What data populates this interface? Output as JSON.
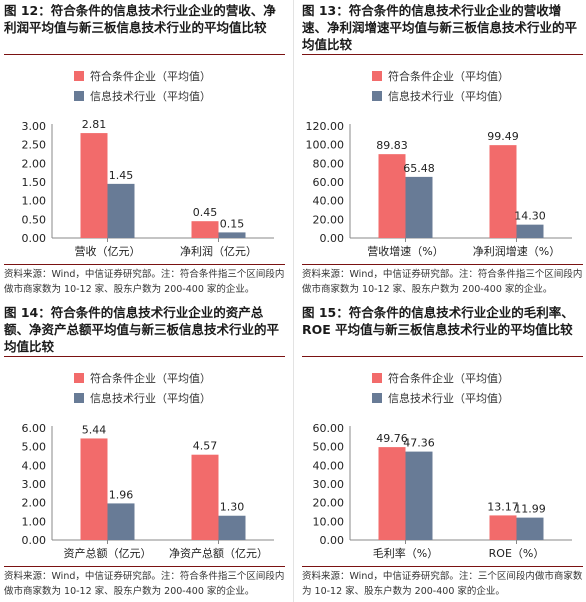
{
  "colors": {
    "series_a": "#f26b6b",
    "series_b": "#687b96",
    "rule": "#7a1212"
  },
  "chart_data": [
    {
      "type": "bar",
      "title": "图 12：符合条件的信息技术行业企业的营收、净利润平均值与新三板信息技术行业的平均值比较",
      "categories": [
        "营收（亿元）",
        "净利润（亿元）"
      ],
      "series": [
        {
          "name": "符合条件企业（平均值）",
          "values": [
            2.81,
            0.45
          ]
        },
        {
          "name": "信息技术行业（平均值）",
          "values": [
            1.45,
            0.15
          ]
        }
      ],
      "value_labels": [
        [
          "2.81",
          "0.45"
        ],
        [
          "1.45",
          "0.15"
        ]
      ],
      "ylim": [
        0,
        3.0
      ],
      "yticks": [
        "0.00",
        "0.50",
        "1.00",
        "1.50",
        "2.00",
        "2.50",
        "3.00"
      ],
      "legend": "top-left",
      "note": "资料来源：Wind，中信证券研究部。注：符合条件指三个区间段内做市商家数为 10-12 家、股东户数为 200-400 家的企业。"
    },
    {
      "type": "bar",
      "title": "图 13：符合条件的信息技术行业企业的营收增速、净利润增速平均值与新三板信息技术行业的平均值比较",
      "categories": [
        "营收增速（%）",
        "净利润增速（%）"
      ],
      "series": [
        {
          "name": "符合条件企业（平均值）",
          "values": [
            89.83,
            99.49
          ]
        },
        {
          "name": "信息技术行业（平均值）",
          "values": [
            65.48,
            14.3
          ]
        }
      ],
      "value_labels": [
        [
          "89.83",
          "99.49"
        ],
        [
          "65.48",
          "14.30"
        ]
      ],
      "ylim": [
        0,
        120
      ],
      "yticks": [
        "0.00",
        "20.00",
        "40.00",
        "60.00",
        "80.00",
        "100.00",
        "120.00"
      ],
      "legend": "top-left",
      "note": "资料来源：Wind，中信证券研究部。注：符合条件指三个区间段内做市商家数为 10-12 家、股东户数为 200-400 家的企业。"
    },
    {
      "type": "bar",
      "title": "图 14：符合条件的信息技术行业企业的资产总额、净资产总额平均值与新三板信息技术行业的平均值比较",
      "categories": [
        "资产总额（亿元）",
        "净资产总额（亿元）"
      ],
      "series": [
        {
          "name": "符合条件企业（平均值）",
          "values": [
            5.44,
            4.57
          ]
        },
        {
          "name": "信息技术行业（平均值）",
          "values": [
            1.96,
            1.3
          ]
        }
      ],
      "value_labels": [
        [
          "5.44",
          "4.57"
        ],
        [
          "1.96",
          "1.30"
        ]
      ],
      "ylim": [
        0,
        6.0
      ],
      "yticks": [
        "0.00",
        "1.00",
        "2.00",
        "3.00",
        "4.00",
        "5.00",
        "6.00"
      ],
      "legend": "top-left",
      "note": "资料来源：Wind，中信证券研究部。注：符合条件指三个区间段内做市商家数为 10-12 家、股东户数为 200-400 家的企业。"
    },
    {
      "type": "bar",
      "title": "图 15：符合条件的信息技术行业企业的毛利率、ROE 平均值与新三板信息技术行业的平均值比较",
      "categories": [
        "毛利率（%）",
        "ROE（%）"
      ],
      "series": [
        {
          "name": "符合条件企业（平均值）",
          "values": [
            49.76,
            13.17
          ]
        },
        {
          "name": "信息技术行业（平均值）",
          "values": [
            47.36,
            11.99
          ]
        }
      ],
      "value_labels": [
        [
          "49.76",
          "13.17"
        ],
        [
          "47.36",
          "11.99"
        ]
      ],
      "ylim": [
        0,
        60
      ],
      "yticks": [
        "0.00",
        "10.00",
        "20.00",
        "30.00",
        "40.00",
        "50.00",
        "60.00"
      ],
      "legend": "top-left",
      "note": "资料来源：Wind，中信证券研究部。注：三个区间段内做市商家数为 10-12 家、股东户数为 200-400 家的企业。"
    }
  ]
}
